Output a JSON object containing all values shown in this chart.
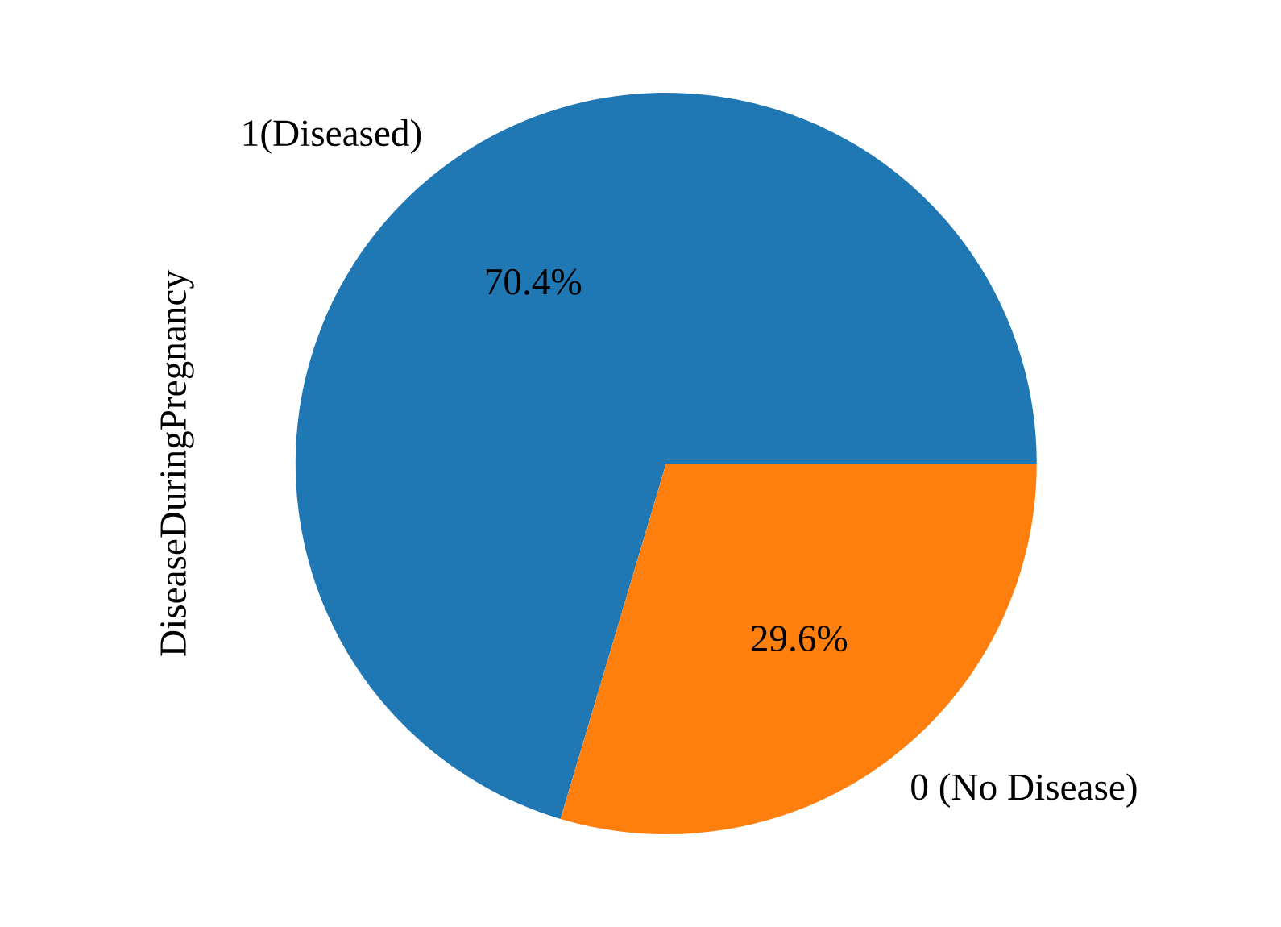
{
  "chart_data": {
    "type": "pie",
    "ylabel": "DiseaseDuringPregnancy",
    "categories": [
      "1(Diseased)",
      "0 (No Disease)"
    ],
    "values": [
      70.4,
      29.6
    ],
    "colors": [
      "#1f77b4",
      "#ff7f0e"
    ],
    "value_labels": [
      "70.4%",
      "29.6%"
    ],
    "legend": false
  }
}
